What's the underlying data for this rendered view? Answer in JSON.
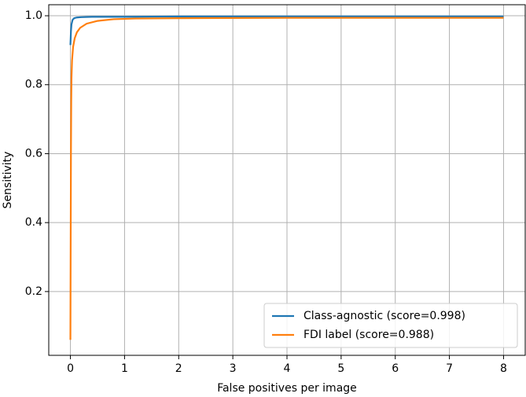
{
  "chart_data": {
    "type": "line",
    "xlabel": "False positives per image",
    "ylabel": "Sensitivity",
    "series": [
      {
        "name": "Class-agnostic (score=0.998)",
        "color": "#1f77b4",
        "x": [
          0,
          0.01,
          0.02,
          0.04,
          0.07,
          0.12,
          0.2,
          0.4,
          1,
          2,
          4,
          8
        ],
        "values": [
          0.915,
          0.955,
          0.975,
          0.988,
          0.993,
          0.995,
          0.996,
          0.997,
          0.997,
          0.998,
          0.998,
          0.998
        ]
      },
      {
        "name": "FDI label (score=0.988)",
        "color": "#ff7f0e",
        "x": [
          0,
          0.005,
          0.01,
          0.015,
          0.02,
          0.03,
          0.05,
          0.08,
          0.12,
          0.18,
          0.3,
          0.5,
          0.8,
          1.2,
          2,
          4,
          8
        ],
        "values": [
          0.06,
          0.35,
          0.6,
          0.75,
          0.82,
          0.87,
          0.91,
          0.935,
          0.952,
          0.965,
          0.977,
          0.985,
          0.99,
          0.992,
          0.993,
          0.994,
          0.994
        ]
      }
    ],
    "xlim": [
      -0.4,
      8.4
    ],
    "xticks": [
      0,
      1,
      2,
      3,
      4,
      5,
      6,
      7,
      8
    ],
    "ylim": [
      0.015,
      1.032
    ],
    "yticks": [
      {
        "value": 0.2,
        "label": "0.2"
      },
      {
        "value": 0.4,
        "label": "0.4"
      },
      {
        "value": 0.6,
        "label": "0.6"
      },
      {
        "value": 0.8,
        "label": "0.8"
      },
      {
        "value": 1.0,
        "label": "1.0"
      }
    ],
    "grid": true,
    "legend": "lower right"
  }
}
